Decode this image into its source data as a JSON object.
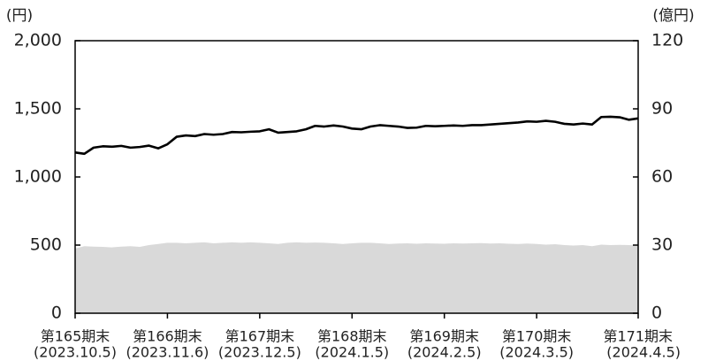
{
  "chart_data": {
    "type": "line",
    "y_unit": "(円)",
    "y2_unit": "(億円)",
    "categories": [
      "第165期末",
      null,
      null,
      null,
      null,
      null,
      null,
      null,
      null,
      null,
      "第166期末",
      null,
      null,
      null,
      null,
      null,
      null,
      null,
      null,
      null,
      "第167期末",
      null,
      null,
      null,
      null,
      null,
      null,
      null,
      null,
      null,
      "第168期末",
      null,
      null,
      null,
      null,
      null,
      null,
      null,
      null,
      null,
      "第169期末",
      null,
      null,
      null,
      null,
      null,
      null,
      null,
      null,
      null,
      "第170期末",
      null,
      null,
      null,
      null,
      null,
      null,
      null,
      null,
      null,
      null,
      "第171期末"
    ],
    "category_dates": [
      "(2023.10.5)",
      null,
      null,
      null,
      null,
      null,
      null,
      null,
      null,
      null,
      "(2023.11.6)",
      null,
      null,
      null,
      null,
      null,
      null,
      null,
      null,
      null,
      "(2023.12.5)",
      null,
      null,
      null,
      null,
      null,
      null,
      null,
      null,
      null,
      "(2024.1.5)",
      null,
      null,
      null,
      null,
      null,
      null,
      null,
      null,
      null,
      "(2024.2.5)",
      null,
      null,
      null,
      null,
      null,
      null,
      null,
      null,
      null,
      "(2024.3.5)",
      null,
      null,
      null,
      null,
      null,
      null,
      null,
      null,
      null,
      null,
      "(2024.4.5)"
    ],
    "series": [
      {
        "style": "area",
        "axis": "y2",
        "color": "#d9d9d9",
        "values": [
          28.5,
          29.5,
          29.3,
          29.2,
          29,
          29.3,
          29.5,
          29.2,
          30,
          30.5,
          31,
          31,
          30.8,
          31,
          31.2,
          30.8,
          31,
          31.2,
          31,
          31.2,
          31,
          30.8,
          30.5,
          31,
          31.2,
          31,
          31.1,
          31,
          30.8,
          30.5,
          30.8,
          31,
          31,
          30.8,
          30.5,
          30.7,
          30.8,
          30.6,
          30.8,
          30.7,
          30.6,
          30.8,
          30.7,
          30.8,
          30.9,
          30.7,
          30.8,
          30.6,
          30.5,
          30.7,
          30.5,
          30.2,
          30.4,
          30,
          29.8,
          30,
          29.5,
          30.2,
          30,
          30.1,
          30,
          29.8
        ]
      },
      {
        "style": "line",
        "axis": "y",
        "color": "#000000",
        "values": [
          1180,
          1170,
          1215,
          1225,
          1222,
          1228,
          1215,
          1220,
          1230,
          1210,
          1240,
          1295,
          1305,
          1300,
          1315,
          1310,
          1315,
          1330,
          1328,
          1332,
          1335,
          1350,
          1325,
          1330,
          1335,
          1350,
          1375,
          1370,
          1378,
          1370,
          1355,
          1350,
          1370,
          1380,
          1375,
          1370,
          1360,
          1362,
          1375,
          1372,
          1375,
          1378,
          1375,
          1380,
          1380,
          1385,
          1390,
          1395,
          1400,
          1408,
          1405,
          1412,
          1405,
          1390,
          1385,
          1392,
          1385,
          1440,
          1442,
          1438,
          1420,
          1430
        ]
      }
    ],
    "ylim": [
      0,
      2000
    ],
    "yticks": [
      0,
      {
        "value": 500,
        "label": "500"
      },
      {
        "value": 1000,
        "label": "1,000"
      },
      {
        "value": 1500,
        "label": "1,500"
      },
      {
        "value": 2000,
        "label": "2,000"
      }
    ],
    "y2lim": [
      0,
      120
    ],
    "y2ticks": [
      0,
      30,
      60,
      90,
      120
    ]
  }
}
